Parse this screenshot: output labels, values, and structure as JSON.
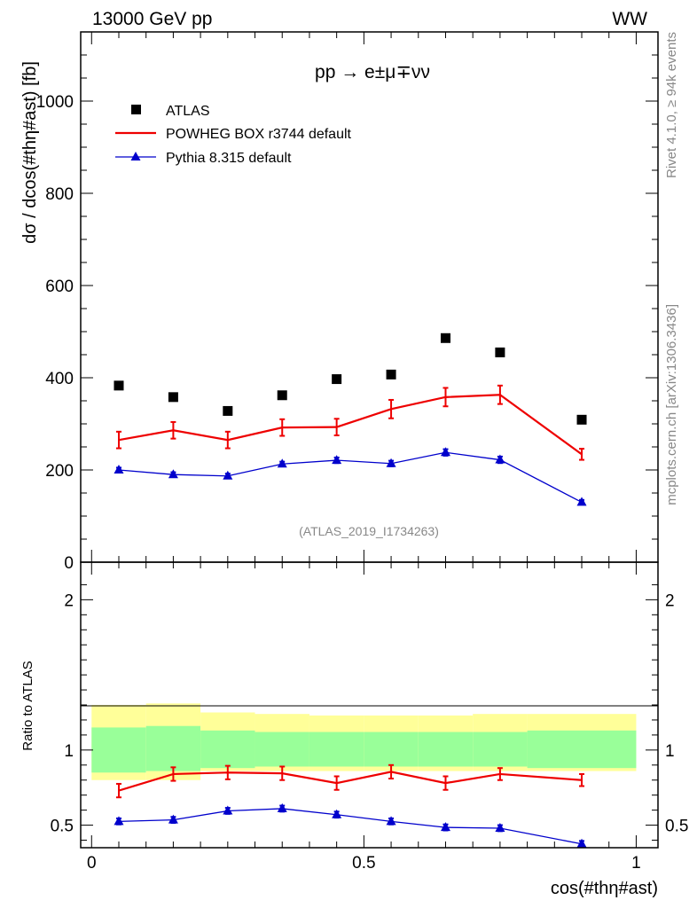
{
  "header": {
    "left": "13000 GeV pp",
    "right": "WW"
  },
  "side": {
    "rivet": "Rivet 4.1.0, ≥ 94k events",
    "mcplots": "mcplots.cern.ch [arXiv:1306.3436]"
  },
  "chart_data": [
    {
      "type": "scatter",
      "title": "pp → e±μ∓νν",
      "xlabel": "cos(#thη#ast)",
      "ylabel": "dσ / dcos(#thη#ast) [fb]",
      "watermark": "(ATLAS_2019_I1734263)",
      "xlim": [
        -0.02,
        1.04
      ],
      "ylim": [
        0,
        1150
      ],
      "y_ticks": [
        0,
        200,
        400,
        600,
        800,
        1000
      ],
      "x": [
        0.05,
        0.15,
        0.25,
        0.35,
        0.45,
        0.55,
        0.65,
        0.75,
        0.9
      ],
      "legend": [
        "ATLAS",
        "POWHEG BOX r3744 default",
        "Pythia 8.315 default"
      ],
      "series": [
        {
          "name": "ATLAS",
          "marker": "square",
          "color": "#000000",
          "values": [
            383,
            358,
            328,
            362,
            397,
            407,
            486,
            455,
            309
          ]
        },
        {
          "name": "POWHEG BOX r3744 default",
          "marker": "line",
          "color": "#ee0000",
          "values": [
            265,
            286,
            265,
            292,
            293,
            332,
            358,
            363,
            234
          ],
          "errors": [
            18,
            18,
            18,
            18,
            18,
            20,
            20,
            20,
            12
          ]
        },
        {
          "name": "Pythia 8.315 default",
          "marker": "triangle",
          "color": "#0000cc",
          "values": [
            200,
            190,
            187,
            213,
            221,
            214,
            238,
            222,
            130
          ],
          "errors": [
            5,
            5,
            5,
            5,
            6,
            6,
            7,
            7,
            5
          ]
        }
      ]
    },
    {
      "type": "line",
      "ylabel": "Ratio to ATLAS",
      "xlim": [
        -0.02,
        1.04
      ],
      "ylim": [
        0.35,
        2.25
      ],
      "x_ticks": [
        0,
        0.5,
        1
      ],
      "x_tick_labels": [
        "0",
        "0.5",
        "1"
      ],
      "y_ticks": [
        0.5,
        1,
        2
      ],
      "y_tick_labels": [
        "0.5",
        "1",
        "2"
      ],
      "bins": [
        0,
        0.1,
        0.2,
        0.3,
        0.4,
        0.5,
        0.6,
        0.7,
        0.8,
        1.0
      ],
      "band_inner": [
        [
          0.85,
          1.15
        ],
        [
          0.86,
          1.16
        ],
        [
          0.88,
          1.13
        ],
        [
          0.89,
          1.12
        ],
        [
          0.89,
          1.12
        ],
        [
          0.89,
          1.12
        ],
        [
          0.89,
          1.12
        ],
        [
          0.89,
          1.12
        ],
        [
          0.88,
          1.13
        ]
      ],
      "band_outer": [
        [
          0.8,
          1.3
        ],
        [
          0.8,
          1.31
        ],
        [
          0.86,
          1.25
        ],
        [
          0.86,
          1.24
        ],
        [
          0.86,
          1.23
        ],
        [
          0.86,
          1.23
        ],
        [
          0.86,
          1.23
        ],
        [
          0.86,
          1.24
        ],
        [
          0.86,
          1.24
        ]
      ],
      "x": [
        0.05,
        0.15,
        0.25,
        0.35,
        0.45,
        0.55,
        0.65,
        0.75,
        0.9
      ],
      "series": [
        {
          "name": "POWHEG BOX r3744 default",
          "color": "#ee0000",
          "values": [
            0.73,
            0.84,
            0.85,
            0.845,
            0.78,
            0.855,
            0.78,
            0.84,
            0.8
          ],
          "errors": [
            0.045,
            0.045,
            0.045,
            0.045,
            0.045,
            0.045,
            0.045,
            0.04,
            0.04
          ]
        },
        {
          "name": "Pythia 8.315 default",
          "color": "#0000cc",
          "values": [
            0.525,
            0.535,
            0.595,
            0.61,
            0.57,
            0.525,
            0.485,
            0.48,
            0.375
          ],
          "errors": [
            0.02,
            0.02,
            0.02,
            0.02,
            0.02,
            0.02,
            0.02,
            0.02,
            0.02
          ]
        }
      ]
    }
  ]
}
